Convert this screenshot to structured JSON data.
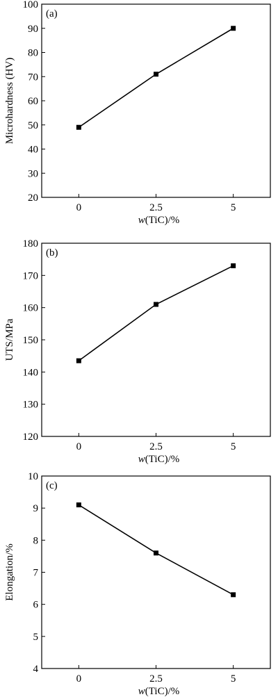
{
  "chart_data": [
    {
      "type": "line",
      "panel_label": "(a)",
      "xlabel_italic": "w",
      "xlabel_rest": "(TiC)/%",
      "ylabel": "Microhardness (HV)",
      "x_ticks": [
        "0",
        "2.5",
        "5"
      ],
      "x": [
        0,
        2.5,
        5
      ],
      "xlim": [
        -1.2,
        6.2
      ],
      "y_ticks": [
        "20",
        "30",
        "40",
        "50",
        "60",
        "70",
        "80",
        "90",
        "100"
      ],
      "ylim": [
        20,
        100
      ],
      "series": [
        {
          "values": [
            49,
            71,
            90
          ]
        }
      ],
      "grid": false,
      "marker": "square"
    },
    {
      "type": "line",
      "panel_label": "(b)",
      "xlabel_italic": "w",
      "xlabel_rest": "(TiC)/%",
      "ylabel": "UTS/MPa",
      "x_ticks": [
        "0",
        "2.5",
        "5"
      ],
      "x": [
        0,
        2.5,
        5
      ],
      "xlim": [
        -1.2,
        6.2
      ],
      "y_ticks": [
        "120",
        "130",
        "140",
        "150",
        "160",
        "170",
        "180"
      ],
      "ylim": [
        120,
        180
      ],
      "series": [
        {
          "values": [
            143.5,
            161,
            173
          ]
        }
      ],
      "grid": false,
      "marker": "square"
    },
    {
      "type": "line",
      "panel_label": "(c)",
      "xlabel_italic": "w",
      "xlabel_rest": "(TiC)/%",
      "ylabel": "Elongation/%",
      "x_ticks": [
        "0",
        "2.5",
        "5"
      ],
      "x": [
        0,
        2.5,
        5
      ],
      "xlim": [
        -1.2,
        6.2
      ],
      "y_ticks": [
        "4",
        "5",
        "6",
        "7",
        "8",
        "9",
        "10"
      ],
      "ylim": [
        4,
        10
      ],
      "series": [
        {
          "values": [
            9.1,
            7.6,
            6.3
          ]
        }
      ],
      "grid": false,
      "marker": "square"
    }
  ]
}
